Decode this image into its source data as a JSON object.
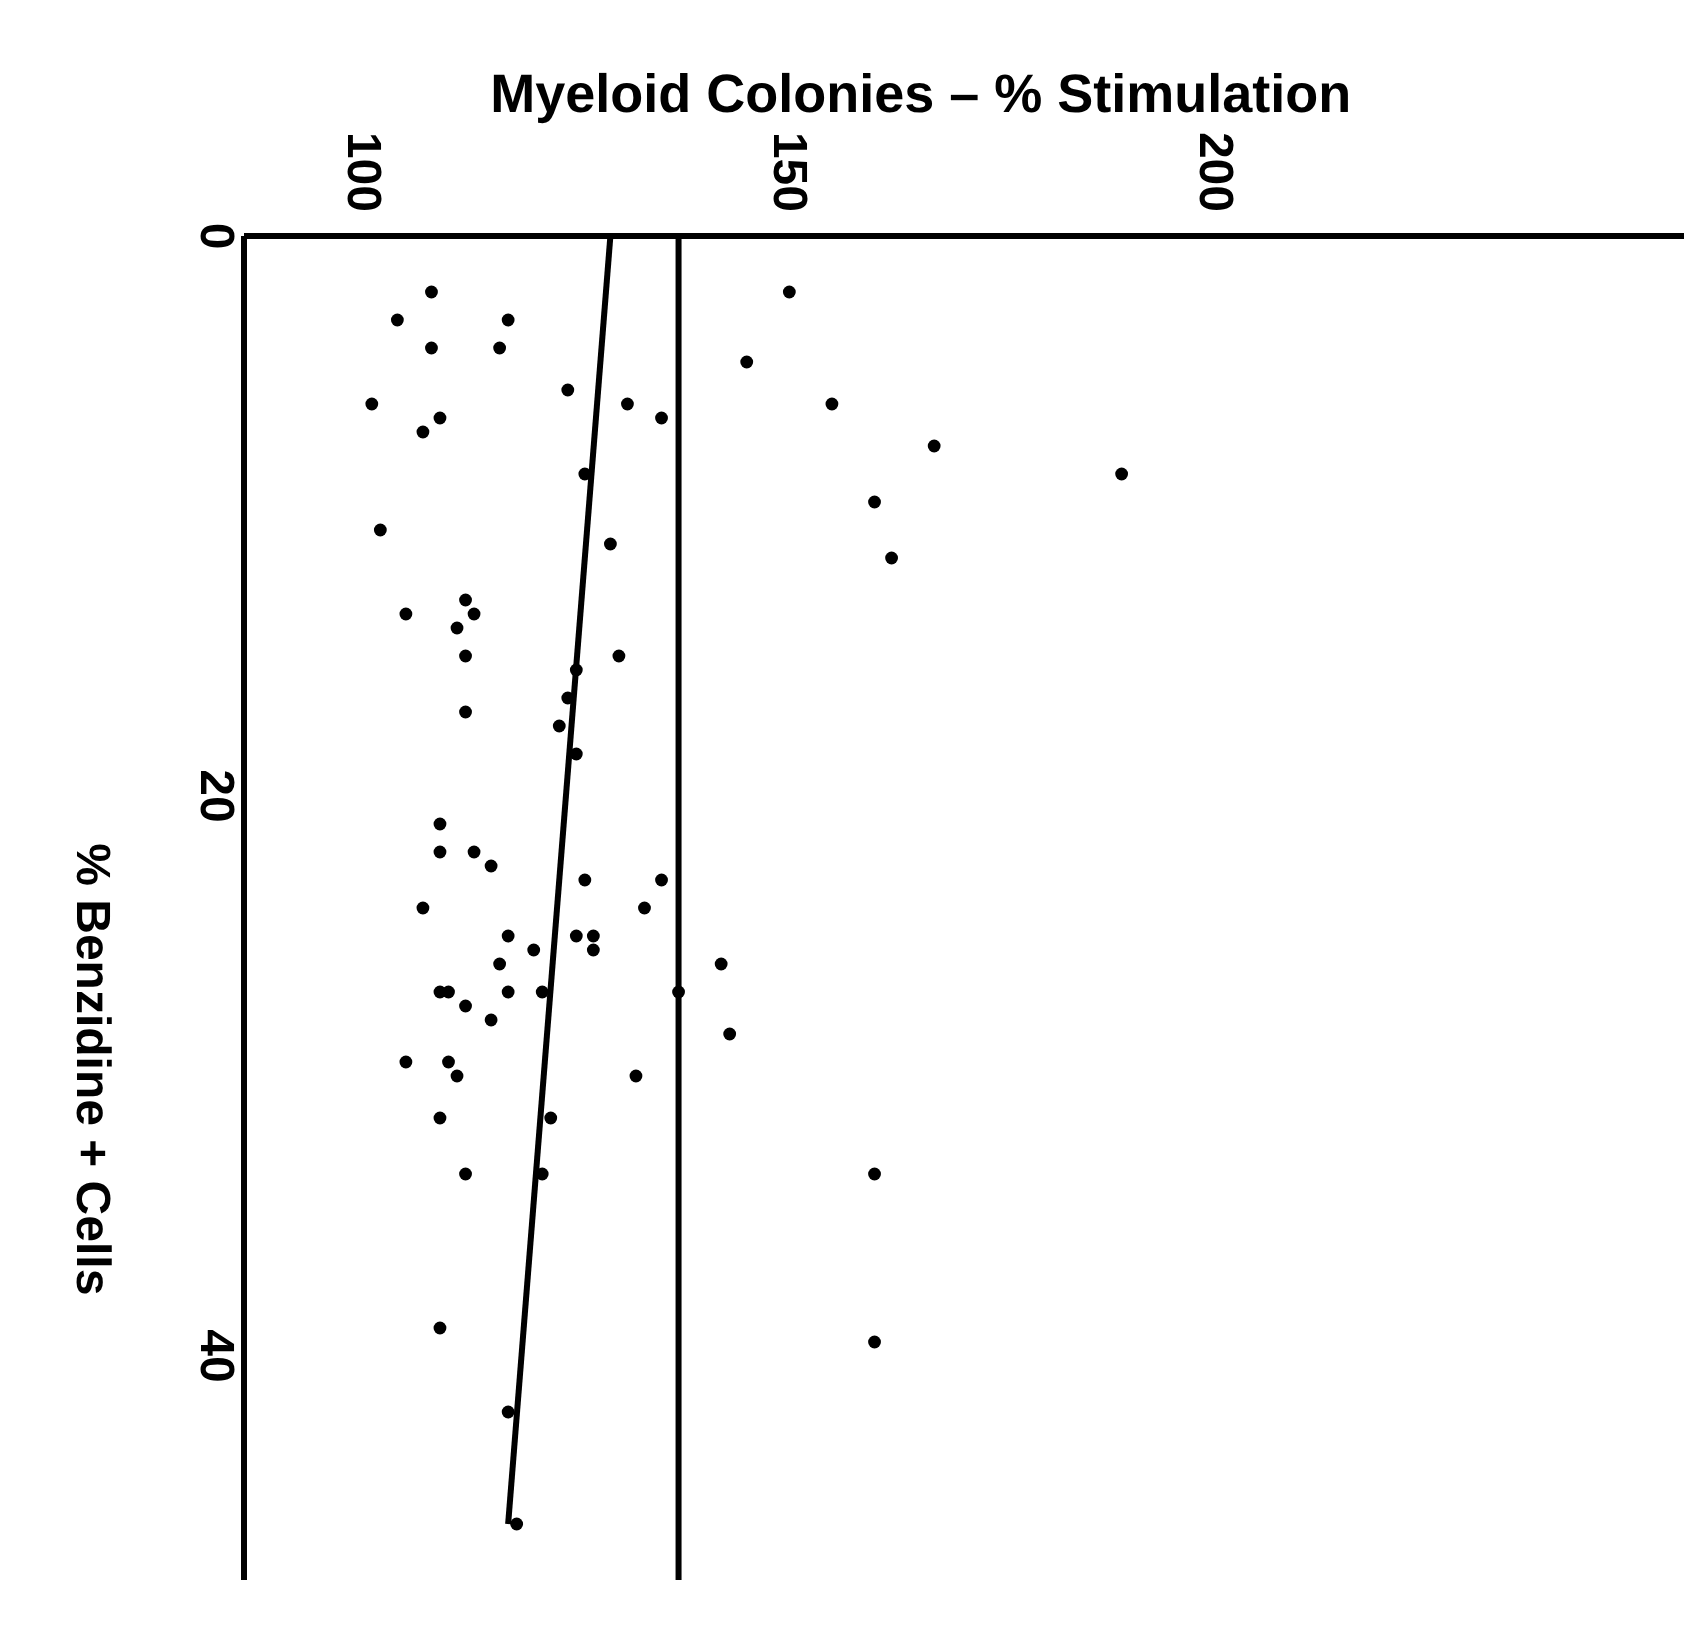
{
  "chart_data": {
    "type": "scatter",
    "xlabel": "Myeloid Colonies – % Stimulation",
    "ylabel": "% Benzidine + Cells",
    "xlim": [
      86,
      255
    ],
    "ylim": [
      48,
      0
    ],
    "xticks": [
      100,
      150,
      200
    ],
    "yticks": [
      0,
      20,
      40
    ],
    "grid": false,
    "legend": false,
    "ref_lines": [
      {
        "axis": "x",
        "value": 137,
        "color": "#000000"
      }
    ],
    "series": [
      {
        "marker": "circle",
        "color": "#000000",
        "x": [
          108,
          104,
          117,
          108,
          116,
          124,
          131,
          135,
          101,
          109,
          107,
          126,
          129,
          102,
          105,
          112,
          113,
          111,
          112,
          130,
          125,
          124,
          123,
          125,
          112,
          109,
          109,
          113,
          115,
          126,
          135,
          107,
          133,
          117,
          125,
          127,
          127,
          120,
          116,
          110,
          109,
          112,
          117,
          121,
          137,
          142,
          143,
          115,
          105,
          110,
          111,
          132,
          109,
          122,
          121,
          112,
          160,
          109,
          160,
          117,
          118,
          150,
          145,
          155,
          167,
          189,
          160,
          162
        ],
        "values": [
          2,
          3,
          3,
          4,
          4,
          5.5,
          6,
          6.5,
          6,
          6.5,
          7,
          8.5,
          11,
          10.5,
          13.5,
          13,
          13.5,
          14,
          15,
          15,
          15.5,
          16.5,
          17.5,
          18.5,
          17,
          21,
          22,
          22,
          22.5,
          23,
          23,
          24,
          24,
          25,
          25,
          25,
          25.5,
          25.5,
          26,
          27,
          27,
          27.5,
          27,
          27,
          27,
          26,
          28.5,
          28,
          29.5,
          29.5,
          30,
          30,
          31.5,
          31.5,
          33.5,
          33.5,
          33.5,
          39,
          39.5,
          42,
          46,
          2,
          4.5,
          6,
          7.5,
          8.5,
          9.5,
          11.5
        ]
      },
      {
        "type": "line",
        "color": "#000000",
        "x": [
          129,
          117
        ],
        "values": [
          0,
          46
        ],
        "line_style": "solid",
        "marker": "none"
      }
    ]
  }
}
